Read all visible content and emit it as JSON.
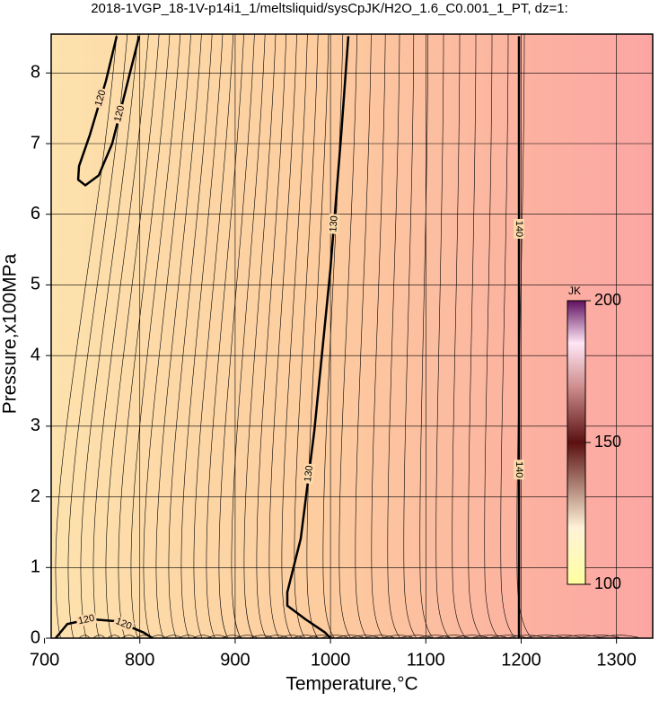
{
  "chart_data": {
    "type": "contour",
    "title": "2018-1VGP_18-1V-p14i1_1/meltsliquid/sysCpJK/H2O_1.6_C0.001_1_PT, dz=1:",
    "x_label": "Temperature,°C",
    "y_label": "Pressure,x100MPa",
    "xlim": [
      707,
      1338
    ],
    "xticks": [
      700,
      800,
      900,
      1000,
      1100,
      1200,
      1300
    ],
    "ylim": [
      0,
      8.55
    ],
    "yticks": [
      0,
      1,
      2,
      3,
      4,
      5,
      6,
      7,
      8
    ],
    "grid": true,
    "series": [
      {
        "name": "120",
        "color": "#000000",
        "x": [
          775.7,
          764.5,
          747.5,
          736.2,
          735.3,
          742.8,
          756.9,
          771,
          785.2,
          799.3
        ],
        "y": [
          8.52,
          7.89,
          7.12,
          6.68,
          6.49,
          6.41,
          6.55,
          7.0,
          7.76,
          8.52
        ]
      },
      {
        "name": "120",
        "color": "#000000",
        "x": [
          711.7,
          723.9,
          747.5,
          775.7,
          804,
          813.4
        ],
        "y": [
          0,
          0.2,
          0.27,
          0.24,
          0.08,
          0
        ]
      },
      {
        "name": "130",
        "color": "#000000",
        "x": [
          1018.7,
          1011.2,
          999.9,
          983,
          968.8,
          954.7,
          954.7,
          973.5,
          994.3,
          999.9
        ],
        "y": [
          8.52,
          7.12,
          5.22,
          2.93,
          1.41,
          0.65,
          0.46,
          0.27,
          0.08,
          0
        ]
      },
      {
        "name": "140",
        "color": "#000000",
        "x": [
          1197.7,
          1197.7
        ],
        "y": [
          8.52,
          0
        ]
      }
    ],
    "colorbar": {
      "label": "JK",
      "lim": [
        100,
        200
      ],
      "ticks": [
        100,
        150,
        200
      ]
    }
  }
}
